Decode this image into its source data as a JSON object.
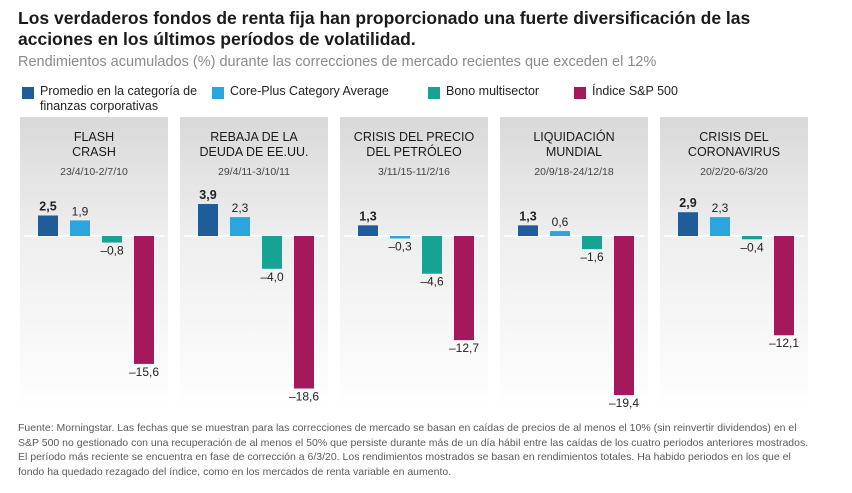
{
  "title": "Los verdaderos fondos de renta fija han proporcionado una fuerte diversificación de las acciones en los últimos períodos de volatilidad.",
  "subtitle": "Rendimientos acumulados (%) durante las correcciones de mercado recientes que exceden el 12%",
  "legend": [
    {
      "label": "Promedio en la categoría de finanzas corporativas",
      "color": "#1f5c9a"
    },
    {
      "label": "Core-Plus Category Average",
      "color": "#29a6e0"
    },
    {
      "label": "Bono multisector",
      "color": "#17a393"
    },
    {
      "label": "Índice S&P 500",
      "color": "#a3195b"
    }
  ],
  "chart_data": {
    "type": "bar",
    "series_names": [
      "Promedio en la categoría de finanzas corporativas",
      "Core-Plus Category Average",
      "Bono multisector",
      "Índice S&P 500"
    ],
    "colors": [
      "#1f5c9a",
      "#29a6e0",
      "#17a393",
      "#a3195b"
    ],
    "panels": [
      {
        "title": [
          "FLASH",
          "CRASH"
        ],
        "dates": "23/4/10-2/7/10",
        "values": [
          2.5,
          1.9,
          -0.8,
          -15.6
        ],
        "labels": [
          "2,5",
          "1,9",
          "–0,8",
          "–15,6"
        ]
      },
      {
        "title": [
          "REBAJA DE LA",
          "DEUDA DE EE.UU."
        ],
        "dates": "29/4/11-3/10/11",
        "values": [
          3.9,
          2.3,
          -4.0,
          -18.6
        ],
        "labels": [
          "3,9",
          "2,3",
          "–4,0",
          "–18,6"
        ]
      },
      {
        "title": [
          "CRISIS DEL PRECIO",
          "DEL PETRÓLEO"
        ],
        "dates": "3/11/15-11/2/16",
        "values": [
          1.3,
          -0.3,
          -4.6,
          -12.7
        ],
        "labels": [
          "1,3",
          "–0,3",
          "–4,6",
          "–12,7"
        ]
      },
      {
        "title": [
          "LIQUIDACIÓN",
          "MUNDIAL"
        ],
        "dates": "20/9/18-24/12/18",
        "values": [
          1.3,
          0.6,
          -1.6,
          -19.4
        ],
        "labels": [
          "1,3",
          "0,6",
          "–1,6",
          "–19,4"
        ]
      },
      {
        "title": [
          "CRISIS DEL",
          "CORONAVIRUS"
        ],
        "dates": "20/2/20-6/3/20",
        "values": [
          2.9,
          2.3,
          -0.4,
          -12.1
        ],
        "labels": [
          "2,9",
          "2,3",
          "–0,4",
          "–12,1"
        ]
      }
    ]
  },
  "footnote": "Fuente: Morningstar. Las fechas que se muestran para las correcciones de mercado se basan en caídas de precios de al menos el 10% (sin reinvertir dividendos) en el S&P 500 no gestionado con una recuperación de al menos el 50% que persiste durante más de un día hábil entre las caídas de los cuatro periodos anteriores mostrados. El período más reciente se encuentra en fase de corrección a 6/3/20. Los rendimientos mostrados se basan en rendimientos totales. Ha habido periodos en los que el fondo ha quedado rezagado del índice, como en los mercados de renta variable en aumento."
}
